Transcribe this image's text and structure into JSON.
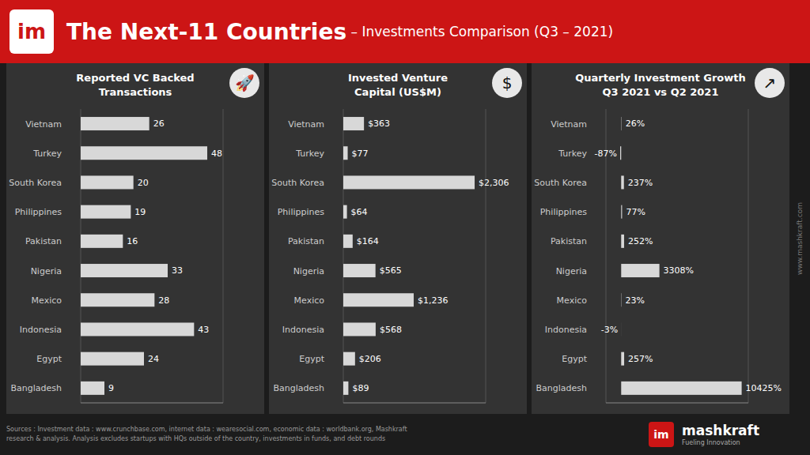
{
  "title": "The Next-11 Countries",
  "subtitle": " – Investments Comparison (Q3 – 2021)",
  "annotations": [
    "im",
    "🚀",
    "$",
    "↗",
    "www.mashkraft.com",
    "Sources : Investment data :  www.crunchbase.com, internet data : wearesocial.com, economic data : worldbank.org, Mashkraft\nresearch & analysis. Analysis excludes startups with HQs  outside of the country, investments in funds, and  debt rounds",
    "mashkraft",
    "Fueling Innovation"
  ],
  "chart_data": [
    {
      "type": "bar",
      "orientation": "horizontal",
      "title": "Reported VC Backed\nTransactions",
      "categories": [
        "Vietnam",
        "Turkey",
        "South Korea",
        "Philippines",
        "Pakistan",
        "Nigeria",
        "Mexico",
        "Indonesia",
        "Egypt",
        "Bangladesh"
      ],
      "values": [
        26,
        48,
        20,
        19,
        16,
        33,
        28,
        43,
        24,
        9
      ],
      "color": "#d8d8d8",
      "xlim": [
        0,
        54
      ],
      "xticks": [
        0,
        13.5,
        27,
        40.5,
        54
      ],
      "grid": true,
      "data_labels": true,
      "tick_labels": "y"
    },
    {
      "type": "bar",
      "orientation": "horizontal",
      "title": "Invested Venture\nCapital (US$M)",
      "categories": [
        "Vietnam",
        "Turkey",
        "South Korea",
        "Philippines",
        "Pakistan",
        "Nigeria",
        "Mexico",
        "Indonesia",
        "Egypt",
        "Bangladesh"
      ],
      "values": [
        363,
        77,
        2306,
        64,
        164,
        565,
        1236,
        568,
        206,
        89
      ],
      "value_labels": [
        "$363",
        "$77",
        "$2,306",
        "$64",
        "$164",
        "$565",
        "$1,236",
        "$568",
        "$206",
        "$89"
      ],
      "color": "#d8d8d8",
      "xlim": [
        0,
        2500
      ],
      "xticks": [
        0,
        625,
        1250,
        1875,
        2500
      ],
      "grid": true,
      "data_labels": true,
      "tick_labels": "y"
    },
    {
      "type": "bar",
      "orientation": "horizontal",
      "title": "Quarterly Investment Growth\nQ3 2021 vs Q2 2021",
      "categories": [
        "Vietnam",
        "Turkey",
        "South Korea",
        "Philippines",
        "Pakistan",
        "Nigeria",
        "Mexico",
        "Indonesia",
        "Egypt",
        "Bangladesh"
      ],
      "values": [
        26,
        -87,
        237,
        77,
        252,
        3308,
        23,
        -3,
        257,
        10425
      ],
      "value_labels": [
        "26%",
        "-87%",
        "237%",
        "77%",
        "252%",
        "3308%",
        "23%",
        "-3%",
        "257%",
        "10425%"
      ],
      "color": "#d8d8d8",
      "xlim": [
        -1320,
        11000
      ],
      "xticks": [
        0,
        2750,
        5500,
        8250,
        11000
      ],
      "grid": true,
      "data_labels": true,
      "tick_labels": "y"
    }
  ]
}
